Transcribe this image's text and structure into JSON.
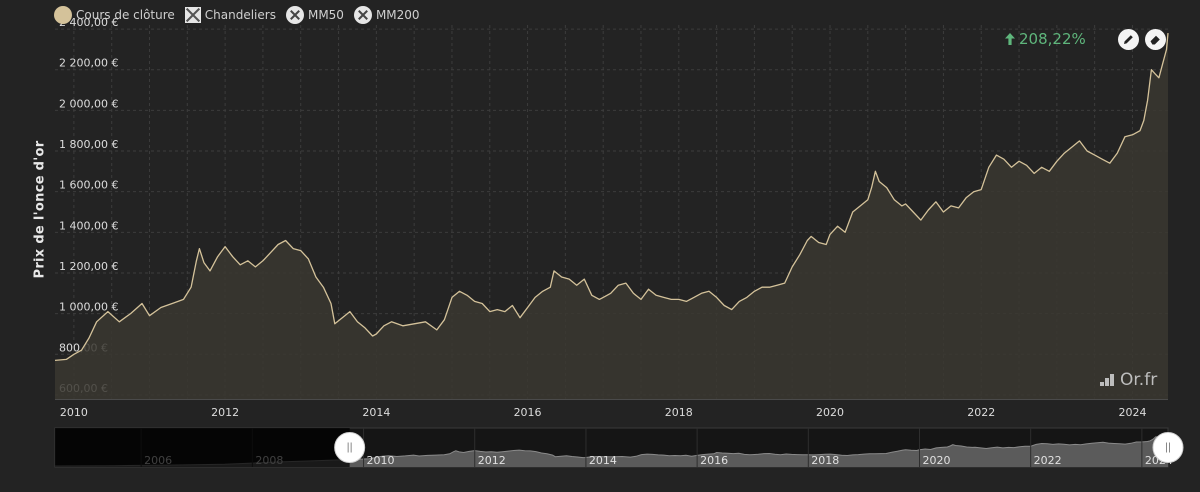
{
  "legend": {
    "items": [
      {
        "label": "Cours de clôture",
        "symbol": "dot",
        "color": "#d4c29a",
        "active": true
      },
      {
        "label": "Chandeliers",
        "symbol": "box-x",
        "active": false
      },
      {
        "label": "MM50",
        "symbol": "circle-x",
        "active": false
      },
      {
        "label": "MM200",
        "symbol": "circle-x",
        "active": false
      }
    ]
  },
  "performance": {
    "value": "208,22%",
    "direction": "up",
    "color": "#5fb67c"
  },
  "tools": [
    {
      "icon": "pencil-icon"
    },
    {
      "icon": "eraser-icon"
    }
  ],
  "watermark": {
    "text": "Or.fr"
  },
  "colors": {
    "background": "#232323",
    "line": "#d4c29a",
    "area": "#3a3730",
    "grid": "#3c3c3c",
    "navigator_fill": "#5b5b5b"
  },
  "chart_data": {
    "type": "area",
    "title": "",
    "ylabel": "Prix de l'once d'or",
    "xlabel": "",
    "ylim": [
      580,
      2420
    ],
    "xlim": [
      2009.75,
      2024.47
    ],
    "x_ticks": [
      2010,
      2012,
      2014,
      2016,
      2018,
      2020,
      2022,
      2024
    ],
    "x_tick_labels": [
      "2010",
      "2012",
      "2014",
      "2016",
      "2018",
      "2020",
      "2022",
      "2024"
    ],
    "y_ticks": [
      600,
      800,
      1000,
      1200,
      1400,
      1600,
      1800,
      2000,
      2200,
      2400
    ],
    "y_tick_labels": [
      "600,00 €",
      "800,00 €",
      "1 000,00 €",
      "1 200,00 €",
      "1 400,00 €",
      "1 600,00 €",
      "1 800,00 €",
      "2 000,00 €",
      "2 200,00 €",
      "2 400,00 €"
    ],
    "grid": true,
    "series": [
      {
        "color": "#d4c29a",
        "points": [
          [
            2009.75,
            770
          ],
          [
            2009.9,
            775
          ],
          [
            2010.0,
            800
          ],
          [
            2010.1,
            820
          ],
          [
            2010.2,
            880
          ],
          [
            2010.3,
            960
          ],
          [
            2010.45,
            1010
          ],
          [
            2010.6,
            960
          ],
          [
            2010.75,
            1000
          ],
          [
            2010.9,
            1050
          ],
          [
            2011.0,
            990
          ],
          [
            2011.15,
            1030
          ],
          [
            2011.3,
            1050
          ],
          [
            2011.45,
            1070
          ],
          [
            2011.55,
            1130
          ],
          [
            2011.62,
            1260
          ],
          [
            2011.66,
            1320
          ],
          [
            2011.72,
            1250
          ],
          [
            2011.8,
            1210
          ],
          [
            2011.9,
            1280
          ],
          [
            2012.0,
            1330
          ],
          [
            2012.1,
            1280
          ],
          [
            2012.2,
            1240
          ],
          [
            2012.3,
            1260
          ],
          [
            2012.4,
            1230
          ],
          [
            2012.5,
            1260
          ],
          [
            2012.6,
            1300
          ],
          [
            2012.7,
            1340
          ],
          [
            2012.8,
            1360
          ],
          [
            2012.9,
            1320
          ],
          [
            2013.0,
            1310
          ],
          [
            2013.1,
            1270
          ],
          [
            2013.2,
            1180
          ],
          [
            2013.3,
            1130
          ],
          [
            2013.4,
            1050
          ],
          [
            2013.45,
            950
          ],
          [
            2013.55,
            980
          ],
          [
            2013.65,
            1010
          ],
          [
            2013.75,
            960
          ],
          [
            2013.85,
            930
          ],
          [
            2013.95,
            890
          ],
          [
            2014.0,
            900
          ],
          [
            2014.1,
            940
          ],
          [
            2014.2,
            960
          ],
          [
            2014.35,
            940
          ],
          [
            2014.5,
            950
          ],
          [
            2014.65,
            960
          ],
          [
            2014.8,
            920
          ],
          [
            2014.9,
            970
          ],
          [
            2015.0,
            1080
          ],
          [
            2015.1,
            1110
          ],
          [
            2015.2,
            1090
          ],
          [
            2015.3,
            1060
          ],
          [
            2015.4,
            1050
          ],
          [
            2015.5,
            1010
          ],
          [
            2015.6,
            1020
          ],
          [
            2015.7,
            1010
          ],
          [
            2015.8,
            1040
          ],
          [
            2015.9,
            980
          ],
          [
            2016.0,
            1030
          ],
          [
            2016.1,
            1080
          ],
          [
            2016.2,
            1110
          ],
          [
            2016.3,
            1130
          ],
          [
            2016.35,
            1210
          ],
          [
            2016.45,
            1180
          ],
          [
            2016.55,
            1170
          ],
          [
            2016.65,
            1140
          ],
          [
            2016.75,
            1170
          ],
          [
            2016.85,
            1090
          ],
          [
            2016.95,
            1070
          ],
          [
            2017.0,
            1080
          ],
          [
            2017.1,
            1100
          ],
          [
            2017.2,
            1140
          ],
          [
            2017.3,
            1150
          ],
          [
            2017.4,
            1100
          ],
          [
            2017.5,
            1070
          ],
          [
            2017.6,
            1120
          ],
          [
            2017.7,
            1090
          ],
          [
            2017.8,
            1080
          ],
          [
            2017.9,
            1070
          ],
          [
            2018.0,
            1070
          ],
          [
            2018.1,
            1060
          ],
          [
            2018.2,
            1080
          ],
          [
            2018.3,
            1100
          ],
          [
            2018.4,
            1110
          ],
          [
            2018.5,
            1080
          ],
          [
            2018.6,
            1040
          ],
          [
            2018.7,
            1020
          ],
          [
            2018.8,
            1060
          ],
          [
            2018.9,
            1080
          ],
          [
            2019.0,
            1110
          ],
          [
            2019.1,
            1130
          ],
          [
            2019.2,
            1130
          ],
          [
            2019.3,
            1140
          ],
          [
            2019.4,
            1150
          ],
          [
            2019.5,
            1230
          ],
          [
            2019.6,
            1290
          ],
          [
            2019.7,
            1360
          ],
          [
            2019.75,
            1380
          ],
          [
            2019.85,
            1350
          ],
          [
            2019.95,
            1340
          ],
          [
            2020.0,
            1390
          ],
          [
            2020.1,
            1430
          ],
          [
            2020.2,
            1400
          ],
          [
            2020.3,
            1500
          ],
          [
            2020.4,
            1530
          ],
          [
            2020.5,
            1560
          ],
          [
            2020.55,
            1620
          ],
          [
            2020.6,
            1700
          ],
          [
            2020.65,
            1650
          ],
          [
            2020.75,
            1620
          ],
          [
            2020.85,
            1560
          ],
          [
            2020.95,
            1530
          ],
          [
            2021.0,
            1540
          ],
          [
            2021.1,
            1500
          ],
          [
            2021.2,
            1460
          ],
          [
            2021.3,
            1510
          ],
          [
            2021.4,
            1550
          ],
          [
            2021.5,
            1500
          ],
          [
            2021.6,
            1530
          ],
          [
            2021.7,
            1520
          ],
          [
            2021.8,
            1570
          ],
          [
            2021.9,
            1600
          ],
          [
            2022.0,
            1610
          ],
          [
            2022.1,
            1720
          ],
          [
            2022.2,
            1780
          ],
          [
            2022.3,
            1760
          ],
          [
            2022.4,
            1720
          ],
          [
            2022.5,
            1750
          ],
          [
            2022.6,
            1730
          ],
          [
            2022.7,
            1690
          ],
          [
            2022.8,
            1720
          ],
          [
            2022.9,
            1700
          ],
          [
            2023.0,
            1750
          ],
          [
            2023.1,
            1790
          ],
          [
            2023.2,
            1820
          ],
          [
            2023.3,
            1850
          ],
          [
            2023.4,
            1800
          ],
          [
            2023.5,
            1780
          ],
          [
            2023.6,
            1760
          ],
          [
            2023.7,
            1740
          ],
          [
            2023.8,
            1790
          ],
          [
            2023.9,
            1870
          ],
          [
            2024.0,
            1880
          ],
          [
            2024.1,
            1900
          ],
          [
            2024.15,
            1950
          ],
          [
            2024.2,
            2050
          ],
          [
            2024.25,
            2200
          ],
          [
            2024.3,
            2180
          ],
          [
            2024.35,
            2160
          ],
          [
            2024.4,
            2230
          ],
          [
            2024.45,
            2300
          ],
          [
            2024.47,
            2380
          ]
        ]
      }
    ],
    "navigator": {
      "x_tick_labels": [
        "2006",
        "2008",
        "2010",
        "2012",
        "2014",
        "2016",
        "2018",
        "2020",
        "2022",
        "2024"
      ],
      "x_ticks": [
        2006,
        2008,
        2010,
        2012,
        2014,
        2016,
        2018,
        2020,
        2022,
        2024
      ],
      "xlim": [
        2004.45,
        2024.47
      ],
      "selected_range": [
        2009.75,
        2024.47
      ]
    }
  }
}
